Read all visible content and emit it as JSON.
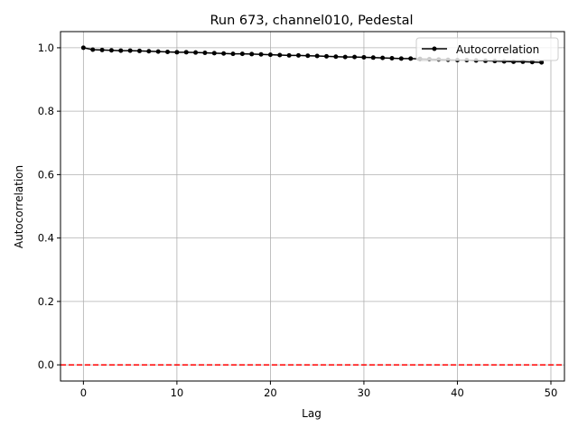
{
  "chart_data": {
    "type": "line",
    "title": "Run 673, channel010, Pedestal",
    "xlabel": "Lag",
    "ylabel": "Autocorrelation",
    "xlim": [
      -2.45,
      51.45
    ],
    "ylim": [
      -0.051,
      1.051
    ],
    "xticks": [
      0,
      10,
      20,
      30,
      40,
      50
    ],
    "yticks": [
      0.0,
      0.2,
      0.4,
      0.6,
      0.8,
      1.0
    ],
    "xtick_labels": [
      "0",
      "10",
      "20",
      "30",
      "40",
      "50"
    ],
    "ytick_labels": [
      "0.0",
      "0.2",
      "0.4",
      "0.6",
      "0.8",
      "1.0"
    ],
    "grid": true,
    "legend_position": "top-right",
    "series": [
      {
        "name": "Autocorrelation",
        "color": "#000000",
        "marker": "dot",
        "x": [
          0,
          1,
          2,
          3,
          4,
          5,
          6,
          7,
          8,
          9,
          10,
          11,
          12,
          13,
          14,
          15,
          16,
          17,
          18,
          19,
          20,
          21,
          22,
          23,
          24,
          25,
          26,
          27,
          28,
          29,
          30,
          31,
          32,
          33,
          34,
          35,
          36,
          37,
          38,
          39,
          40,
          41,
          42,
          43,
          44,
          45,
          46,
          47,
          48,
          49
        ],
        "y": [
          1.0,
          0.994,
          0.993,
          0.992,
          0.991,
          0.991,
          0.99,
          0.989,
          0.988,
          0.987,
          0.986,
          0.986,
          0.985,
          0.984,
          0.983,
          0.982,
          0.981,
          0.981,
          0.98,
          0.979,
          0.978,
          0.977,
          0.976,
          0.976,
          0.975,
          0.974,
          0.973,
          0.972,
          0.971,
          0.971,
          0.97,
          0.969,
          0.968,
          0.967,
          0.966,
          0.966,
          0.965,
          0.964,
          0.963,
          0.962,
          0.961,
          0.961,
          0.96,
          0.959,
          0.958,
          0.957,
          0.956,
          0.956,
          0.955,
          0.954
        ]
      }
    ],
    "reference_line": {
      "y": 0.0,
      "color": "#ff0000",
      "style": "dashed"
    }
  }
}
